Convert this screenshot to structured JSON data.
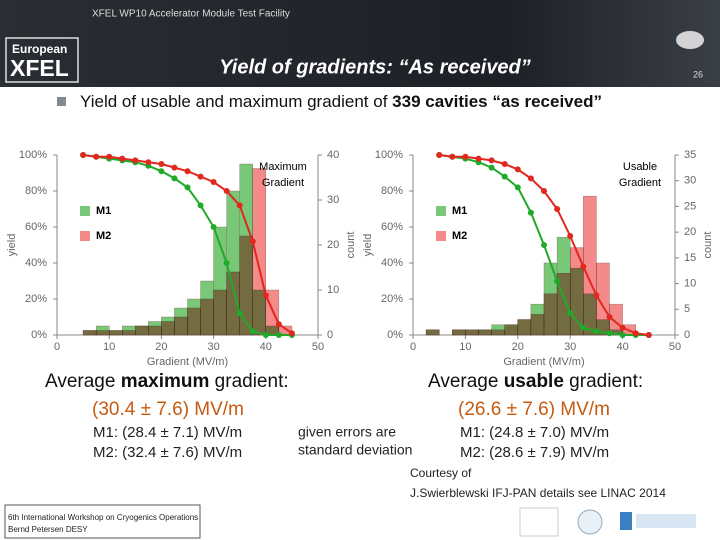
{
  "header": {
    "subtitle": "XFEL WP10 Accelerator Module Test Facility",
    "logo": [
      "European",
      "XFEL"
    ],
    "title": "Yield of gradients: “As received”",
    "page": "26"
  },
  "bullet": [
    "Yield of usable and maximum gradient of ",
    "339 cavities “as received”"
  ],
  "chart_data": [
    {
      "type": "histogram",
      "annotation": [
        "Maximum",
        "Gradient"
      ],
      "xlabel": "Gradient (MV/m)",
      "ylabel": "yield",
      "y2label": "count",
      "xlim": [
        0,
        50
      ],
      "xticks": [
        0,
        10,
        20,
        30,
        40,
        50
      ],
      "ylim": [
        0,
        100
      ],
      "yticks": [
        {
          "value": 0,
          "label": "0%"
        },
        {
          "value": 20,
          "label": "20%"
        },
        {
          "value": 40,
          "label": "40%"
        },
        {
          "value": 60,
          "label": "60%"
        },
        {
          "value": 80,
          "label": "80%"
        },
        {
          "value": 100,
          "label": "100%"
        }
      ],
      "y2lim": [
        0,
        40
      ],
      "y2ticks": [
        0,
        10,
        20,
        30,
        40
      ],
      "bins": [
        2.5,
        5,
        7.5,
        10,
        12.5,
        15,
        17.5,
        20,
        22.5,
        25,
        27.5,
        30,
        32.5,
        35,
        37.5,
        40,
        42.5,
        45
      ],
      "series": [
        {
          "name": "M1",
          "color": "#78c878",
          "axis": "y2",
          "values": [
            0,
            1,
            2,
            1,
            2,
            2,
            3,
            4,
            6,
            8,
            12,
            24,
            32,
            38,
            10,
            2,
            0
          ]
        },
        {
          "name": "M2",
          "color": "#f58a8a",
          "axis": "y2",
          "values": [
            0,
            1,
            1,
            1,
            1,
            2,
            2,
            3,
            4,
            6,
            8,
            10,
            14,
            22,
            37,
            10,
            2
          ]
        }
      ],
      "x": [
        5,
        7.5,
        10,
        12.5,
        15,
        17.5,
        20,
        22.5,
        25,
        27.5,
        30,
        32.5,
        35,
        37.5,
        40,
        42.5,
        45
      ],
      "lines": [
        {
          "color": "#1faa2a",
          "values": [
            100,
            99,
            98,
            97,
            96,
            94,
            91,
            87,
            82,
            72,
            60,
            40,
            12,
            2,
            0,
            0,
            0
          ]
        },
        {
          "color": "#e0281e",
          "values": [
            100,
            99,
            99,
            98,
            97,
            96,
            95,
            93,
            91,
            88,
            85,
            80,
            72,
            52,
            22,
            6,
            1
          ]
        }
      ]
    },
    {
      "type": "histogram",
      "annotation": [
        "Usable",
        "Gradient"
      ],
      "xlabel": "Gradient (MV/m)",
      "ylabel": "yield",
      "y2label": "count",
      "xlim": [
        0,
        50
      ],
      "xticks": [
        0,
        10,
        20,
        30,
        40,
        50
      ],
      "ylim": [
        0,
        100
      ],
      "yticks": [
        {
          "value": 0,
          "label": "0%"
        },
        {
          "value": 20,
          "label": "20%"
        },
        {
          "value": 40,
          "label": "40%"
        },
        {
          "value": 60,
          "label": "60%"
        },
        {
          "value": 80,
          "label": "80%"
        },
        {
          "value": 100,
          "label": "100%"
        }
      ],
      "y2lim": [
        0,
        35
      ],
      "y2ticks": [
        0,
        5,
        10,
        15,
        20,
        25,
        30,
        35
      ],
      "bins": [
        2.5,
        5,
        7.5,
        10,
        12.5,
        15,
        17.5,
        20,
        22.5,
        25,
        27.5,
        30,
        32.5,
        35,
        37.5,
        40,
        42.5,
        45
      ],
      "series": [
        {
          "name": "M1",
          "color": "#78c878",
          "axis": "y2",
          "values": [
            1,
            0,
            1,
            1,
            1,
            2,
            2,
            3,
            6,
            14,
            19,
            13,
            8,
            3,
            1,
            0,
            0
          ]
        },
        {
          "name": "M2",
          "color": "#f58a8a",
          "axis": "y2",
          "values": [
            1,
            0,
            1,
            1,
            1,
            1,
            2,
            3,
            4,
            8,
            12,
            17,
            27,
            14,
            6,
            2,
            0
          ]
        }
      ],
      "x": [
        5,
        7.5,
        10,
        12.5,
        15,
        17.5,
        20,
        22.5,
        25,
        27.5,
        30,
        32.5,
        35,
        37.5,
        40,
        42.5,
        45
      ],
      "lines": [
        {
          "color": "#1faa2a",
          "values": [
            100,
            99,
            98,
            96,
            93,
            88,
            82,
            68,
            50,
            30,
            12,
            4,
            2,
            1,
            0,
            0,
            0
          ]
        },
        {
          "color": "#e0281e",
          "values": [
            100,
            99,
            99,
            98,
            97,
            95,
            92,
            87,
            80,
            70,
            55,
            38,
            22,
            10,
            4,
            1,
            0
          ]
        }
      ]
    }
  ],
  "left": {
    "heading": [
      "Average ",
      "maximum",
      " gradient:"
    ],
    "result": "(30.4 ± 7.6) MV/m",
    "m1": "M1: (28.4 ± 7.1) MV/m",
    "m2": "M2: (32.4 ± 7.6) MV/m"
  },
  "middle": [
    "given errors are",
    "standard deviation"
  ],
  "right": {
    "heading": [
      "Average ",
      "usable",
      " gradient:"
    ],
    "result": "(26.6 ± 7.6) MV/m",
    "m1": "M1: (24.8 ± 7.0) MV/m",
    "m2": "M2: (28.6 ± 7.9) MV/m"
  },
  "courtesy": [
    "Courtesy of",
    "J.Swierblewski IFJ-PAN details see LINAC 2014"
  ],
  "footer": [
    "6th International Workshop on Cryogenics Operations",
    "Bernd Petersen DESY"
  ]
}
